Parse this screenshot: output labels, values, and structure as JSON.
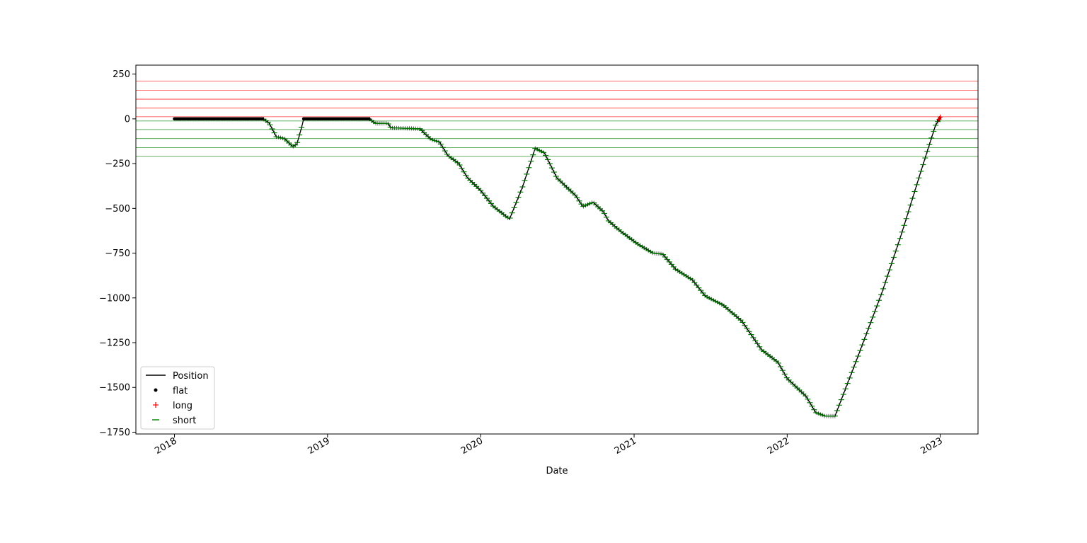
{
  "chart_data": {
    "type": "line",
    "title": "",
    "xlabel": "Date",
    "ylabel": "",
    "xlim": [
      "2017-10-01",
      "2023-04-01"
    ],
    "ylim": [
      -1760,
      300
    ],
    "x_ticks": [
      "2018-01-01",
      "2019-01-01",
      "2020-01-01",
      "2021-01-01",
      "2022-01-01",
      "2023-01-01"
    ],
    "x_tick_labels": [
      "2018",
      "2019",
      "2020",
      "2021",
      "2022",
      "2023"
    ],
    "y_ticks": [
      250,
      0,
      -250,
      -500,
      -750,
      -1000,
      -1250,
      -1500,
      -1750
    ],
    "y_tick_labels": [
      "250",
      "0",
      "−250",
      "−500",
      "−750",
      "−1000",
      "−1250",
      "−1500",
      "−1750"
    ],
    "grid": false,
    "legend_placement": "lower-left",
    "reference_lines": {
      "long_levels": [
        12,
        60,
        110,
        160,
        210
      ],
      "short_levels": [
        -12,
        -60,
        -110,
        -160,
        -210
      ],
      "long_color": "#ff0000",
      "short_color": "#008000"
    },
    "series": [
      {
        "name": "Position",
        "color": "#000000",
        "points": [
          [
            "2018-01-01",
            0
          ],
          [
            "2018-08-01",
            0
          ],
          [
            "2018-08-15",
            -25
          ],
          [
            "2018-09-01",
            -100
          ],
          [
            "2018-09-20",
            -110
          ],
          [
            "2018-10-10",
            -155
          ],
          [
            "2018-10-20",
            -140
          ],
          [
            "2018-11-01",
            -40
          ],
          [
            "2018-11-05",
            0
          ],
          [
            "2019-04-10",
            0
          ],
          [
            "2019-04-25",
            -25
          ],
          [
            "2019-05-25",
            -25
          ],
          [
            "2019-06-01",
            -50
          ],
          [
            "2019-08-10",
            -55
          ],
          [
            "2019-08-20",
            -80
          ],
          [
            "2019-09-05",
            -115
          ],
          [
            "2019-09-25",
            -130
          ],
          [
            "2019-10-15",
            -205
          ],
          [
            "2019-11-10",
            -250
          ],
          [
            "2019-12-01",
            -330
          ],
          [
            "2020-01-01",
            -400
          ],
          [
            "2020-02-01",
            -490
          ],
          [
            "2020-03-10",
            -560
          ],
          [
            "2020-04-10",
            -380
          ],
          [
            "2020-05-10",
            -165
          ],
          [
            "2020-06-01",
            -190
          ],
          [
            "2020-07-01",
            -330
          ],
          [
            "2020-08-15",
            -430
          ],
          [
            "2020-09-01",
            -490
          ],
          [
            "2020-09-25",
            -465
          ],
          [
            "2020-10-20",
            -520
          ],
          [
            "2020-11-01",
            -570
          ],
          [
            "2020-12-01",
            -630
          ],
          [
            "2021-01-10",
            -700
          ],
          [
            "2021-02-15",
            -750
          ],
          [
            "2021-03-10",
            -755
          ],
          [
            "2021-04-10",
            -840
          ],
          [
            "2021-05-20",
            -900
          ],
          [
            "2021-06-20",
            -990
          ],
          [
            "2021-08-01",
            -1040
          ],
          [
            "2021-09-15",
            -1130
          ],
          [
            "2021-11-01",
            -1290
          ],
          [
            "2021-12-10",
            -1360
          ],
          [
            "2022-01-01",
            -1450
          ],
          [
            "2022-02-15",
            -1550
          ],
          [
            "2022-03-10",
            -1640
          ],
          [
            "2022-04-01",
            -1660
          ],
          [
            "2022-04-25",
            -1660
          ],
          [
            "2022-06-15",
            -1350
          ],
          [
            "2022-08-15",
            -970
          ],
          [
            "2022-10-01",
            -640
          ],
          [
            "2022-11-15",
            -300
          ],
          [
            "2022-12-20",
            -40
          ],
          [
            "2023-01-01",
            10
          ]
        ]
      },
      {
        "name": "flat",
        "color": "#000000",
        "marker": "dot",
        "ranges": [
          [
            "2018-01-01",
            "2018-08-01"
          ],
          [
            "2018-11-05",
            "2019-04-10"
          ],
          [
            "2022-12-28",
            "2023-01-01"
          ]
        ]
      },
      {
        "name": "long",
        "color": "#ff0000",
        "marker": "plus",
        "ranges": [
          [
            "2022-12-29",
            "2023-01-01"
          ]
        ]
      },
      {
        "name": "short",
        "color": "#008000",
        "marker": "dash",
        "ranges": [
          [
            "2018-08-02",
            "2018-11-04"
          ],
          [
            "2019-04-11",
            "2022-12-27"
          ]
        ]
      }
    ]
  }
}
